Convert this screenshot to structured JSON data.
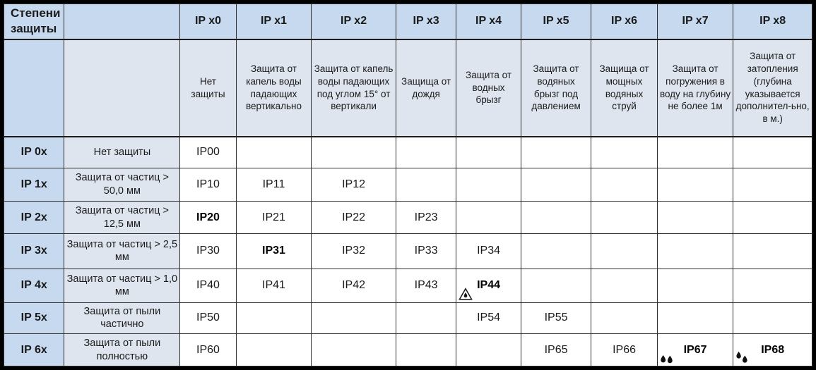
{
  "colors": {
    "header_blue": "#c7d9ee",
    "panel_blue": "#dee5ee",
    "cell_white": "#ffffff",
    "grid_line": "#2e2e2e",
    "frame_border": "#000000",
    "text": "#1a1a1a"
  },
  "icons": {
    "triangle-drop": "water-drop-in-triangle-icon",
    "two-drops": "two-water-drops-icon",
    "two-drops-splash": "two-water-drops-splash-icon"
  },
  "table": {
    "corner_title": "Степени защиты",
    "columns": [
      {
        "label": "IP x0",
        "description": "Нет защиты"
      },
      {
        "label": "IP x1",
        "description": "Защита от капель воды падающих вертикально"
      },
      {
        "label": "IP x2",
        "description": "Защита от капель воды падающих под углом 15° от вертикали"
      },
      {
        "label": "IP x3",
        "description": "Защища от дождя"
      },
      {
        "label": "IP x4",
        "description": "Защита от водных брызг"
      },
      {
        "label": "IP x5",
        "description": "Защита от водяных брызг под давлением"
      },
      {
        "label": "IP x6",
        "description": "Защища от мощных водяных струй"
      },
      {
        "label": "IP x7",
        "description": "Защита от погружения в воду на глубину не более 1м"
      },
      {
        "label": "IP x8",
        "description": "Защита от затопления (глубина указывается дополнител-ьно, в м.)"
      }
    ],
    "rows": [
      {
        "label": "IP 0x",
        "description": "Нет защиты",
        "cells": [
          {
            "text": "IP00"
          },
          {},
          {},
          {},
          {},
          {},
          {},
          {},
          {}
        ]
      },
      {
        "label": "IP 1x",
        "description": "Защита от частиц > 50,0 мм",
        "cells": [
          {
            "text": "IP10"
          },
          {
            "text": "IP11"
          },
          {
            "text": "IP12"
          },
          {},
          {},
          {},
          {},
          {},
          {}
        ]
      },
      {
        "label": "IP 2x",
        "description": "Защита от частиц > 12,5 мм",
        "cells": [
          {
            "text": "IP20",
            "bold": true
          },
          {
            "text": "IP21"
          },
          {
            "text": "IP22"
          },
          {
            "text": "IP23"
          },
          {},
          {},
          {},
          {},
          {}
        ]
      },
      {
        "label": "IP 3x",
        "description": "Защита от частиц > 2,5 мм",
        "cells": [
          {
            "text": "IP30"
          },
          {
            "text": "IP31",
            "bold": true
          },
          {
            "text": "IP32"
          },
          {
            "text": "IP33"
          },
          {
            "text": "IP34"
          },
          {},
          {},
          {},
          {}
        ]
      },
      {
        "label": "IP 4x",
        "description": "Защита от частиц > 1,0 мм",
        "cells": [
          {
            "text": "IP40"
          },
          {
            "text": "IP41"
          },
          {
            "text": "IP42"
          },
          {
            "text": "IP43"
          },
          {
            "text": "IP44",
            "bold": true,
            "icon": "triangle-drop"
          },
          {},
          {},
          {},
          {}
        ]
      },
      {
        "label": "IP 5x",
        "description": "Защита от пыли частично",
        "cells": [
          {
            "text": "IP50"
          },
          {},
          {},
          {},
          {
            "text": "IP54"
          },
          {
            "text": "IP55"
          },
          {},
          {},
          {}
        ]
      },
      {
        "label": "IP 6x",
        "description": "Защита от пыли полностью",
        "cells": [
          {
            "text": "IP60"
          },
          {},
          {},
          {},
          {},
          {
            "text": "IP65"
          },
          {
            "text": "IP66"
          },
          {
            "text": "IP67",
            "bold": true,
            "icon": "two-drops"
          },
          {
            "text": "IP68",
            "bold": true,
            "icon": "two-drops-splash"
          }
        ]
      }
    ]
  }
}
